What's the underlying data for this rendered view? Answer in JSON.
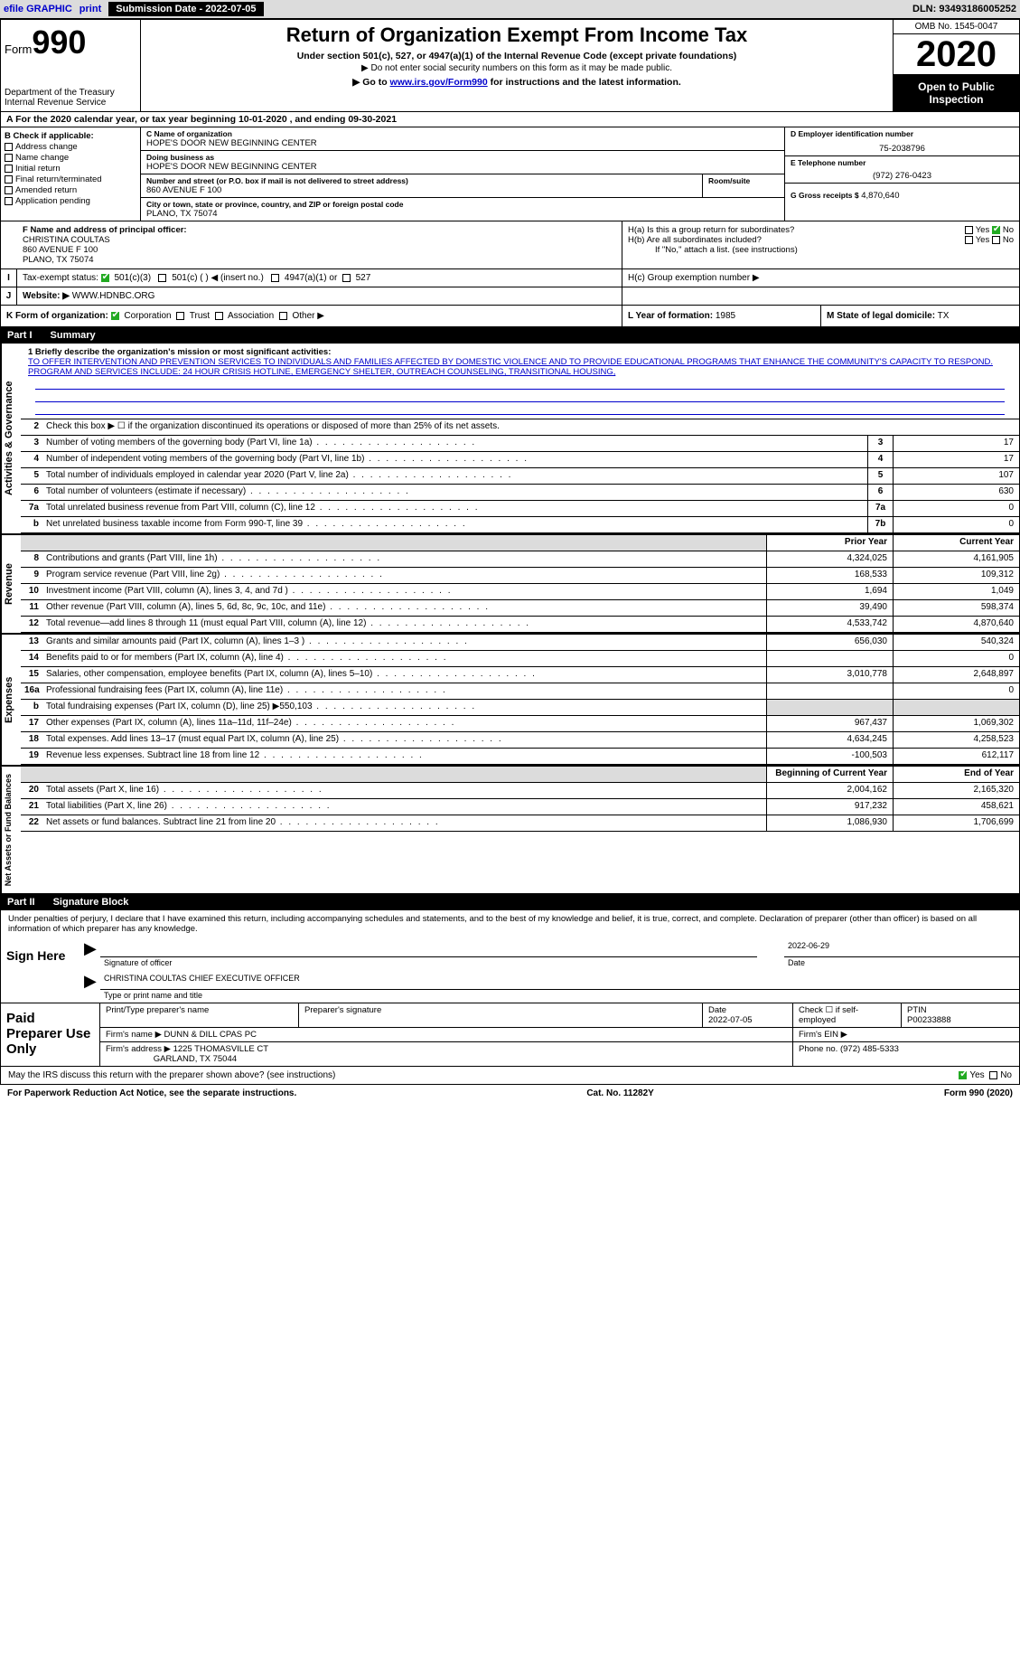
{
  "topbar": {
    "efile": "efile GRAPHIC",
    "print": "print",
    "sub_label": "Submission Date - 2022-07-05",
    "dln": "DLN: 93493186005252"
  },
  "header": {
    "form_prefix": "Form",
    "form_num": "990",
    "dept": "Department of the Treasury",
    "irs": "Internal Revenue Service",
    "title": "Return of Organization Exempt From Income Tax",
    "sub": "Under section 501(c), 527, or 4947(a)(1) of the Internal Revenue Code (except private foundations)",
    "sub2": "▶ Do not enter social security numbers on this form as it may be made public.",
    "sub3_pre": "▶ Go to ",
    "sub3_link": "www.irs.gov/Form990",
    "sub3_post": " for instructions and the latest information.",
    "omb": "OMB No. 1545-0047",
    "year": "2020",
    "open": "Open to Public Inspection"
  },
  "section_a": "A For the 2020 calendar year, or tax year beginning 10-01-2020   , and ending 09-30-2021",
  "box_b": {
    "hdr": "B Check if applicable:",
    "opts": [
      "Address change",
      "Name change",
      "Initial return",
      "Final return/terminated",
      "Amended return",
      "Application pending"
    ]
  },
  "box_c": {
    "name_lbl": "C Name of organization",
    "name": "HOPE'S DOOR NEW BEGINNING CENTER",
    "dba_lbl": "Doing business as",
    "dba": "HOPE'S DOOR NEW BEGINNING CENTER",
    "addr_lbl": "Number and street (or P.O. box if mail is not delivered to street address)",
    "room_lbl": "Room/suite",
    "addr": "860 AVENUE F 100",
    "city_lbl": "City or town, state or province, country, and ZIP or foreign postal code",
    "city": "PLANO, TX  75074"
  },
  "box_d": {
    "lbl": "D Employer identification number",
    "val": "75-2038796"
  },
  "box_e": {
    "lbl": "E Telephone number",
    "val": "(972) 276-0423"
  },
  "box_g": {
    "lbl": "G Gross receipts $",
    "val": "4,870,640"
  },
  "box_f": {
    "lbl": "F  Name and address of principal officer:",
    "name": "CHRISTINA COULTAS",
    "addr1": "860 AVENUE F 100",
    "addr2": "PLANO, TX  75074"
  },
  "box_h": {
    "ha": "H(a)  Is this a group return for subordinates?",
    "hb": "H(b)  Are all subordinates included?",
    "hb_note": "If \"No,\" attach a list. (see instructions)",
    "hc": "H(c)  Group exemption number ▶",
    "yes": "Yes",
    "no": "No"
  },
  "box_i": {
    "lbl": "Tax-exempt status:",
    "o1": "501(c)(3)",
    "o2": "501(c) (   ) ◀ (insert no.)",
    "o3": "4947(a)(1) or",
    "o4": "527"
  },
  "box_j": {
    "lbl": "J",
    "web": "Website: ▶",
    "val": "WWW.HDNBC.ORG"
  },
  "box_k": {
    "lbl": "K Form of organization:",
    "opts": [
      "Corporation",
      "Trust",
      "Association",
      "Other ▶"
    ]
  },
  "box_l": {
    "lbl": "L Year of formation:",
    "val": "1985"
  },
  "box_m": {
    "lbl": "M State of legal domicile:",
    "val": "TX"
  },
  "part1": {
    "num": "Part I",
    "title": "Summary"
  },
  "mission": {
    "lbl": "1  Briefly describe the organization's mission or most significant activities:",
    "text": "TO OFFER INTERVENTION AND PREVENTION SERVICES TO INDIVIDUALS AND FAMILIES AFFECTED BY DOMESTIC VIOLENCE AND TO PROVIDE EDUCATIONAL PROGRAMS THAT ENHANCE THE COMMUNITY'S CAPACITY TO RESPOND. PROGRAM AND SERVICES INCLUDE: 24 HOUR CRISIS HOTLINE, EMERGENCY SHELTER, OUTREACH COUNSELING, TRANSITIONAL HOUSING,"
  },
  "line2": "Check this box ▶ ☐ if the organization discontinued its operations or disposed of more than 25% of its net assets.",
  "gov_rows": [
    {
      "n": "3",
      "l": "Number of voting members of the governing body (Part VI, line 1a)",
      "b": "3",
      "v": "17"
    },
    {
      "n": "4",
      "l": "Number of independent voting members of the governing body (Part VI, line 1b)",
      "b": "4",
      "v": "17"
    },
    {
      "n": "5",
      "l": "Total number of individuals employed in calendar year 2020 (Part V, line 2a)",
      "b": "5",
      "v": "107"
    },
    {
      "n": "6",
      "l": "Total number of volunteers (estimate if necessary)",
      "b": "6",
      "v": "630"
    },
    {
      "n": "7a",
      "l": "Total unrelated business revenue from Part VIII, column (C), line 12",
      "b": "7a",
      "v": "0"
    },
    {
      "n": "b",
      "l": "Net unrelated business taxable income from Form 990-T, line 39",
      "b": "7b",
      "v": "0"
    }
  ],
  "col_headers": {
    "prior": "Prior Year",
    "current": "Current Year"
  },
  "revenue_rows": [
    {
      "n": "8",
      "l": "Contributions and grants (Part VIII, line 1h)",
      "p": "4,324,025",
      "c": "4,161,905"
    },
    {
      "n": "9",
      "l": "Program service revenue (Part VIII, line 2g)",
      "p": "168,533",
      "c": "109,312"
    },
    {
      "n": "10",
      "l": "Investment income (Part VIII, column (A), lines 3, 4, and 7d )",
      "p": "1,694",
      "c": "1,049"
    },
    {
      "n": "11",
      "l": "Other revenue (Part VIII, column (A), lines 5, 6d, 8c, 9c, 10c, and 11e)",
      "p": "39,490",
      "c": "598,374"
    },
    {
      "n": "12",
      "l": "Total revenue—add lines 8 through 11 (must equal Part VIII, column (A), line 12)",
      "p": "4,533,742",
      "c": "4,870,640"
    }
  ],
  "expense_rows": [
    {
      "n": "13",
      "l": "Grants and similar amounts paid (Part IX, column (A), lines 1–3 )",
      "p": "656,030",
      "c": "540,324"
    },
    {
      "n": "14",
      "l": "Benefits paid to or for members (Part IX, column (A), line 4)",
      "p": "",
      "c": "0"
    },
    {
      "n": "15",
      "l": "Salaries, other compensation, employee benefits (Part IX, column (A), lines 5–10)",
      "p": "3,010,778",
      "c": "2,648,897"
    },
    {
      "n": "16a",
      "l": "Professional fundraising fees (Part IX, column (A), line 11e)",
      "p": "",
      "c": "0"
    },
    {
      "n": "b",
      "l": "Total fundraising expenses (Part IX, column (D), line 25) ▶550,103",
      "p": "shaded",
      "c": "shaded"
    },
    {
      "n": "17",
      "l": "Other expenses (Part IX, column (A), lines 11a–11d, 11f–24e)",
      "p": "967,437",
      "c": "1,069,302"
    },
    {
      "n": "18",
      "l": "Total expenses. Add lines 13–17 (must equal Part IX, column (A), line 25)",
      "p": "4,634,245",
      "c": "4,258,523"
    },
    {
      "n": "19",
      "l": "Revenue less expenses. Subtract line 18 from line 12",
      "p": "-100,503",
      "c": "612,117"
    }
  ],
  "net_headers": {
    "beg": "Beginning of Current Year",
    "end": "End of Year"
  },
  "net_rows": [
    {
      "n": "20",
      "l": "Total assets (Part X, line 16)",
      "p": "2,004,162",
      "c": "2,165,320"
    },
    {
      "n": "21",
      "l": "Total liabilities (Part X, line 26)",
      "p": "917,232",
      "c": "458,621"
    },
    {
      "n": "22",
      "l": "Net assets or fund balances. Subtract line 21 from line 20",
      "p": "1,086,930",
      "c": "1,706,699"
    }
  ],
  "vtabs": {
    "gov": "Activities & Governance",
    "rev": "Revenue",
    "exp": "Expenses",
    "net": "Net Assets or Fund Balances"
  },
  "part2": {
    "num": "Part II",
    "title": "Signature Block"
  },
  "sig": {
    "decl": "Under penalties of perjury, I declare that I have examined this return, including accompanying schedules and statements, and to the best of my knowledge and belief, it is true, correct, and complete. Declaration of preparer (other than officer) is based on all information of which preparer has any knowledge.",
    "sign_here": "Sign Here",
    "sig_officer": "Signature of officer",
    "date": "Date",
    "sig_date": "2022-06-29",
    "name_title": "CHRISTINA COULTAS CHIEF EXECUTIVE OFFICER",
    "type_name": "Type or print name and title"
  },
  "paid": {
    "hdr": "Paid Preparer Use Only",
    "col1": "Print/Type preparer's name",
    "col2": "Preparer's signature",
    "col3_lbl": "Date",
    "col3": "2022-07-05",
    "col4": "Check ☐ if self-employed",
    "col5_lbl": "PTIN",
    "col5": "P00233888",
    "firm_name_lbl": "Firm's name   ▶",
    "firm_name": "DUNN & DILL CPAS PC",
    "firm_ein": "Firm's EIN ▶",
    "firm_addr_lbl": "Firm's address ▶",
    "firm_addr1": "1225 THOMASVILLE CT",
    "firm_addr2": "GARLAND, TX  75044",
    "phone_lbl": "Phone no.",
    "phone": "(972) 485-5333"
  },
  "discuss": {
    "text": "May the IRS discuss this return with the preparer shown above? (see instructions)",
    "yes": "Yes",
    "no": "No"
  },
  "footer": {
    "left": "For Paperwork Reduction Act Notice, see the separate instructions.",
    "mid": "Cat. No. 11282Y",
    "right": "Form 990 (2020)"
  },
  "colors": {
    "link": "#0000cc",
    "shade": "#dcdcdc",
    "check": "#22aa22"
  }
}
